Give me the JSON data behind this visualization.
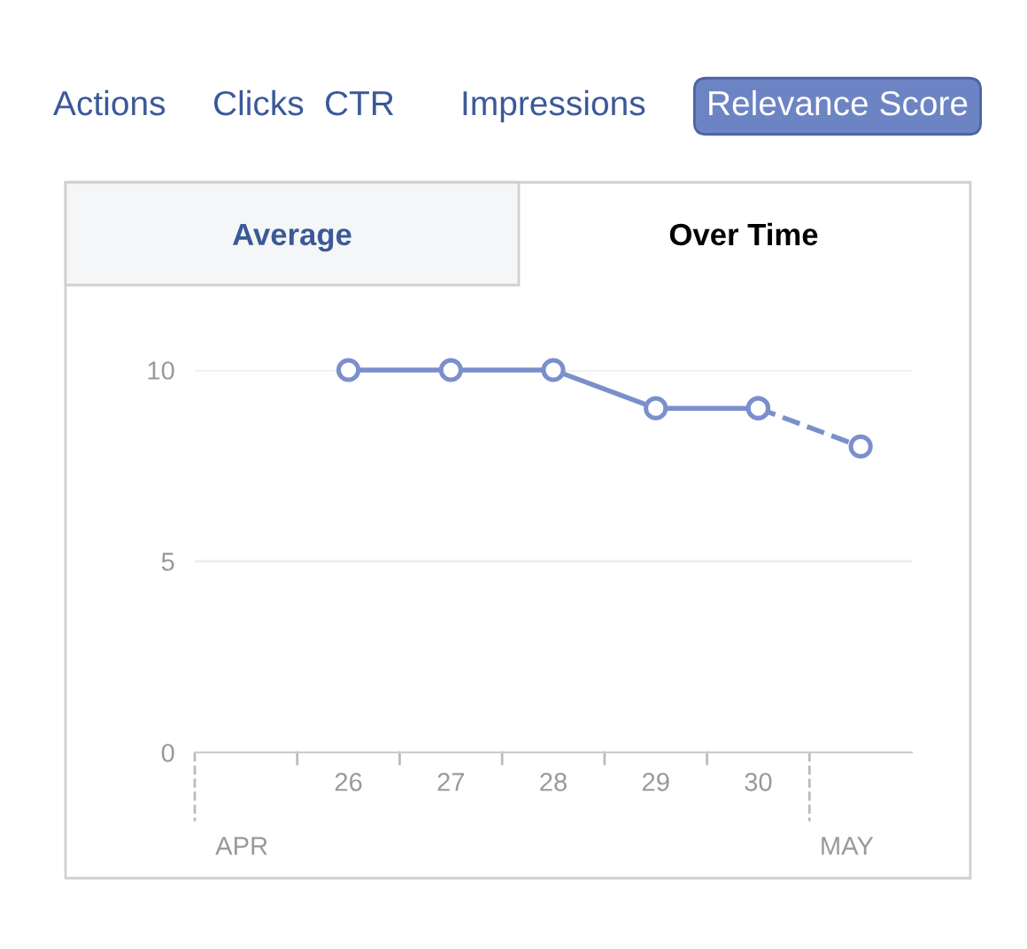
{
  "chart_data": {
    "type": "line",
    "categories": [
      "26",
      "27",
      "28",
      "29",
      "30",
      null
    ],
    "series": [
      {
        "color": "#7b8fcc",
        "values": [
          10,
          10,
          10,
          9,
          9,
          null
        ],
        "line_style": "solid"
      },
      {
        "color": "#7b8fcc",
        "values": [
          null,
          null,
          null,
          null,
          9,
          8
        ],
        "line_style": "dashed"
      }
    ],
    "marker": "circle",
    "ylim": [
      0,
      10
    ],
    "yticks": [
      0,
      5,
      10
    ],
    "grid": "y",
    "annotations": [
      "Actions",
      "Clicks",
      "CTR",
      "Impressions",
      "Relevance Score",
      "Average",
      "Over Time",
      "APR",
      "MAY"
    ]
  }
}
